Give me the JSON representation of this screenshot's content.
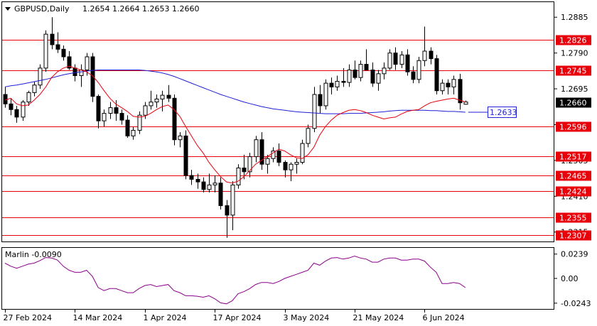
{
  "header": {
    "symbol": "GBPUSD,Daily",
    "ohlc": "1.2654 1.2664 1.2653 1.2660"
  },
  "colors": {
    "candle_outline": "#000000",
    "bull_body": "#ffffff",
    "bear_body": "#000000",
    "ma_fast": "#e8000b",
    "ma_slow": "#1f1fd6",
    "level_line": "#e8000b",
    "marlin": "#8b008b",
    "current_price_bg": "#000000",
    "ma_label_border": "#1f1fd6"
  },
  "chart_data": [
    {
      "type": "candlestick",
      "title": "GBPUSD,Daily",
      "y_ticks": [
        "1.2885",
        "1.2790",
        "1.2695",
        "1.2600",
        "1.2505",
        "1.2410",
        "1.2315"
      ],
      "ylim": [
        1.229,
        1.2925
      ],
      "x_ticks": [
        {
          "label": "27 Feb 2024",
          "index": 0
        },
        {
          "label": "14 Mar 2024",
          "index": 12
        },
        {
          "label": "1 Apr 2024",
          "index": 24
        },
        {
          "label": "17 Apr 2024",
          "index": 36
        },
        {
          "label": "3 May 2024",
          "index": 48
        },
        {
          "label": "21 May 2024",
          "index": 60
        },
        {
          "label": "6 Jun 2024",
          "index": 72
        }
      ],
      "levels": [
        {
          "value": 1.2826,
          "label": "1.2826"
        },
        {
          "value": 1.2745,
          "label": "1.2745"
        },
        {
          "value": 1.2596,
          "label": "1.2596"
        },
        {
          "value": 1.2517,
          "label": "1.2517"
        },
        {
          "value": 1.2465,
          "label": "1.2465"
        },
        {
          "value": 1.2424,
          "label": "1.2424"
        },
        {
          "value": 1.2355,
          "label": "1.2355"
        },
        {
          "value": 1.2307,
          "label": "1.2307"
        }
      ],
      "current_price": {
        "value": 1.266,
        "label": "1.2660"
      },
      "ma_label": {
        "value": 1.2633,
        "label": "1.2633"
      },
      "candles": [
        [
          1.268,
          1.27,
          1.2645,
          1.2655
        ],
        [
          1.2655,
          1.267,
          1.2625,
          1.264
        ],
        [
          1.264,
          1.265,
          1.2605,
          1.262
        ],
        [
          1.262,
          1.2665,
          1.261,
          1.266
        ],
        [
          1.266,
          1.269,
          1.265,
          1.2685
        ],
        [
          1.2685,
          1.2715,
          1.2675,
          1.2705
        ],
        [
          1.2705,
          1.276,
          1.2695,
          1.275
        ],
        [
          1.275,
          1.285,
          1.274,
          1.284
        ],
        [
          1.284,
          1.2885,
          1.28,
          1.2812
        ],
        [
          1.2812,
          1.2845,
          1.279,
          1.28
        ],
        [
          1.28,
          1.281,
          1.277,
          1.278
        ],
        [
          1.278,
          1.2795,
          1.2745,
          1.275
        ],
        [
          1.275,
          1.276,
          1.2715,
          1.273
        ],
        [
          1.273,
          1.276,
          1.27,
          1.2745
        ],
        [
          1.2745,
          1.279,
          1.273,
          1.278
        ],
        [
          1.278,
          1.279,
          1.266,
          1.2675
        ],
        [
          1.2675,
          1.268,
          1.259,
          1.261
        ],
        [
          1.261,
          1.264,
          1.2595,
          1.263
        ],
        [
          1.263,
          1.266,
          1.2615,
          1.2645
        ],
        [
          1.2645,
          1.2665,
          1.261,
          1.263
        ],
        [
          1.263,
          1.264,
          1.26,
          1.2612
        ],
        [
          1.2612,
          1.2625,
          1.2565,
          1.257
        ],
        [
          1.257,
          1.2595,
          1.256,
          1.2585
        ],
        [
          1.2585,
          1.2635,
          1.2575,
          1.2625
        ],
        [
          1.2625,
          1.266,
          1.2615,
          1.265
        ],
        [
          1.265,
          1.269,
          1.264,
          1.266
        ],
        [
          1.266,
          1.268,
          1.2645,
          1.2668
        ],
        [
          1.2668,
          1.269,
          1.2635,
          1.2678
        ],
        [
          1.2678,
          1.2705,
          1.266,
          1.267
        ],
        [
          1.267,
          1.268,
          1.2545,
          1.256
        ],
        [
          1.256,
          1.258,
          1.254,
          1.257
        ],
        [
          1.257,
          1.2585,
          1.2455,
          1.2465
        ],
        [
          1.2465,
          1.248,
          1.244,
          1.2455
        ],
        [
          1.2455,
          1.247,
          1.243,
          1.2448
        ],
        [
          1.2448,
          1.246,
          1.242,
          1.2428
        ],
        [
          1.2428,
          1.247,
          1.242,
          1.244
        ],
        [
          1.244,
          1.2465,
          1.242,
          1.2445
        ],
        [
          1.2445,
          1.246,
          1.2375,
          1.2385
        ],
        [
          1.2385,
          1.24,
          1.23,
          1.236
        ],
        [
          1.236,
          1.245,
          1.232,
          1.244
        ],
        [
          1.244,
          1.2495,
          1.243,
          1.2485
        ],
        [
          1.2485,
          1.252,
          1.2455,
          1.2475
        ],
        [
          1.2475,
          1.2525,
          1.246,
          1.2515
        ],
        [
          1.2515,
          1.257,
          1.25,
          1.256
        ],
        [
          1.256,
          1.258,
          1.248,
          1.2495
        ],
        [
          1.2495,
          1.252,
          1.247,
          1.251
        ],
        [
          1.251,
          1.254,
          1.25,
          1.253
        ],
        [
          1.253,
          1.255,
          1.249,
          1.25
        ],
        [
          1.25,
          1.2505,
          1.246,
          1.248
        ],
        [
          1.248,
          1.25,
          1.245,
          1.2495
        ],
        [
          1.2495,
          1.251,
          1.247,
          1.25
        ],
        [
          1.25,
          1.256,
          1.2495,
          1.255
        ],
        [
          1.255,
          1.26,
          1.254,
          1.259
        ],
        [
          1.259,
          1.27,
          1.258,
          1.268
        ],
        [
          1.268,
          1.2705,
          1.263,
          1.265
        ],
        [
          1.265,
          1.272,
          1.264,
          1.271
        ],
        [
          1.271,
          1.2725,
          1.268,
          1.27
        ],
        [
          1.27,
          1.273,
          1.269,
          1.2715
        ],
        [
          1.2715,
          1.275,
          1.27,
          1.2712
        ],
        [
          1.2712,
          1.276,
          1.27,
          1.2745
        ],
        [
          1.2745,
          1.277,
          1.272,
          1.2725
        ],
        [
          1.2725,
          1.277,
          1.2715,
          1.276
        ],
        [
          1.276,
          1.28,
          1.275,
          1.2745
        ],
        [
          1.2745,
          1.2765,
          1.27,
          1.271
        ],
        [
          1.271,
          1.2745,
          1.269,
          1.2735
        ],
        [
          1.2735,
          1.2765,
          1.272,
          1.275
        ],
        [
          1.275,
          1.28,
          1.2745,
          1.279
        ],
        [
          1.279,
          1.2805,
          1.2745,
          1.276
        ],
        [
          1.276,
          1.2795,
          1.275,
          1.2785
        ],
        [
          1.2785,
          1.28,
          1.273,
          1.274
        ],
        [
          1.274,
          1.2755,
          1.271,
          1.272
        ],
        [
          1.272,
          1.278,
          1.271,
          1.277
        ],
        [
          1.277,
          1.286,
          1.2755,
          1.2795
        ],
        [
          1.2795,
          1.2805,
          1.276,
          1.2775
        ],
        [
          1.2775,
          1.2785,
          1.268,
          1.269
        ],
        [
          1.269,
          1.272,
          1.268,
          1.271
        ],
        [
          1.271,
          1.272,
          1.268,
          1.27
        ],
        [
          1.27,
          1.273,
          1.268,
          1.272
        ],
        [
          1.272,
          1.2735,
          1.264,
          1.2658
        ],
        [
          1.2654,
          1.2664,
          1.2653,
          1.266
        ]
      ],
      "ma_fast_values": [
        1.2665,
        1.267,
        1.2655,
        1.265,
        1.2652,
        1.2665,
        1.268,
        1.27,
        1.2725,
        1.274,
        1.275,
        1.2755,
        1.275,
        1.2745,
        1.274,
        1.273,
        1.2712,
        1.269,
        1.267,
        1.2655,
        1.2645,
        1.2635,
        1.2622,
        1.262,
        1.2622,
        1.263,
        1.264,
        1.2648,
        1.2652,
        1.264,
        1.2622,
        1.2595,
        1.257,
        1.2545,
        1.2525,
        1.25,
        1.248,
        1.2462,
        1.2448,
        1.2445,
        1.245,
        1.2462,
        1.2478,
        1.2495,
        1.2505,
        1.2515,
        1.2525,
        1.2535,
        1.253,
        1.252,
        1.2512,
        1.251,
        1.252,
        1.254,
        1.2572,
        1.2595,
        1.2612,
        1.2625,
        1.2632,
        1.2638,
        1.264,
        1.2637,
        1.2632,
        1.2625,
        1.262,
        1.2615,
        1.2618,
        1.262,
        1.2628,
        1.2635,
        1.2638,
        1.264,
        1.265,
        1.2658,
        1.2662,
        1.2665,
        1.2668,
        1.267,
        1.2665,
        1.266
      ],
      "ma_slow_values": [
        1.27,
        1.2703,
        1.2705,
        1.2708,
        1.2711,
        1.2714,
        1.2717,
        1.272,
        1.2724,
        1.2728,
        1.2732,
        1.2735,
        1.2738,
        1.274,
        1.2742,
        1.2744,
        1.2745,
        1.2745,
        1.2745,
        1.2745,
        1.2745,
        1.2745,
        1.2745,
        1.2745,
        1.2744,
        1.2742,
        1.274,
        1.2737,
        1.2733,
        1.2728,
        1.2722,
        1.2716,
        1.271,
        1.2704,
        1.2698,
        1.2692,
        1.2686,
        1.268,
        1.2675,
        1.267,
        1.2665,
        1.266,
        1.2656,
        1.2652,
        1.2648,
        1.2645,
        1.2642,
        1.264,
        1.2638,
        1.2636,
        1.2634,
        1.2633,
        1.2632,
        1.2631,
        1.263,
        1.2629,
        1.2629,
        1.2629,
        1.2629,
        1.263,
        1.263,
        1.263,
        1.2631,
        1.2632,
        1.2633,
        1.2634,
        1.2636,
        1.2637,
        1.2638,
        1.2638,
        1.2638,
        1.2638,
        1.2638,
        1.2637,
        1.2637,
        1.2636,
        1.2635,
        1.2635,
        1.2634,
        1.2633
      ]
    },
    {
      "type": "line",
      "title": "Marlin -0.0090",
      "y_ticks": [
        "0.0239",
        "0.00",
        "-0.0243"
      ],
      "ylim": [
        -0.03,
        0.03
      ],
      "series": [
        {
          "values": [
            0.015,
            0.012,
            0.01,
            0.012,
            0.014,
            0.015,
            0.0175,
            0.0205,
            0.02,
            0.018,
            0.012,
            0.008,
            0.006,
            0.006,
            0.008,
            0.002,
            -0.009,
            -0.012,
            -0.01,
            -0.01,
            -0.012,
            -0.014,
            -0.014,
            -0.01,
            -0.007,
            -0.006,
            -0.008,
            -0.007,
            -0.006,
            -0.012,
            -0.014,
            -0.017,
            -0.017,
            -0.0175,
            -0.0185,
            -0.017,
            -0.02,
            -0.024,
            -0.025,
            -0.022,
            -0.015,
            -0.013,
            -0.01,
            -0.006,
            -0.004,
            -0.004,
            -0.005,
            -0.003,
            0.0,
            0.002,
            0.004,
            0.006,
            0.008,
            0.015,
            0.013,
            0.017,
            0.02,
            0.0205,
            0.019,
            0.02,
            0.022,
            0.02,
            0.019,
            0.016,
            0.016,
            0.019,
            0.02,
            0.02,
            0.018,
            0.018,
            0.019,
            0.019,
            0.017,
            0.011,
            0.006,
            -0.005,
            -0.005,
            -0.004,
            -0.005,
            -0.009
          ]
        }
      ]
    }
  ]
}
